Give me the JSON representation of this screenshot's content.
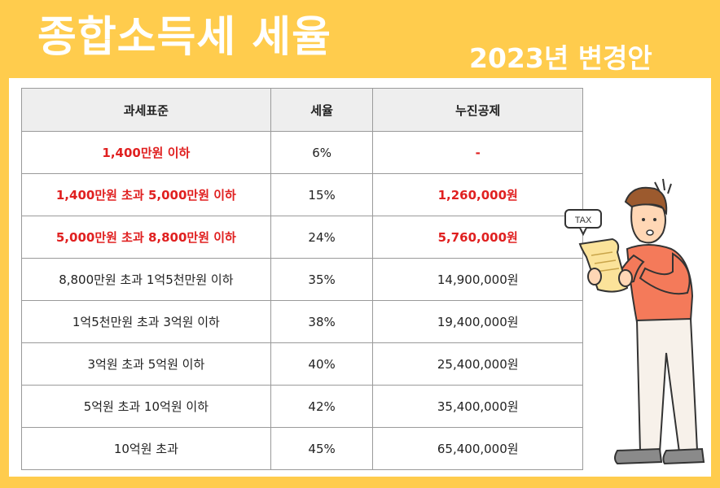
{
  "header": {
    "title": "종합소득세 세율",
    "subtitle": "2023년 변경안"
  },
  "table": {
    "columns": [
      "과세표준",
      "세율",
      "누진공제"
    ],
    "rows": [
      {
        "bracket": "1,400만원 이하",
        "rate": "6%",
        "deduction": "-",
        "highlight": true
      },
      {
        "bracket": "1,400만원 초과 5,000만원 이하",
        "rate": "15%",
        "deduction": "1,260,000원",
        "highlight": true
      },
      {
        "bracket": "5,000만원 초과 8,800만원 이하",
        "rate": "24%",
        "deduction": "5,760,000원",
        "highlight": true
      },
      {
        "bracket": "8,800만원 초과 1억5천만원 이하",
        "rate": "35%",
        "deduction": "14,900,000원",
        "highlight": false
      },
      {
        "bracket": "1억5천만원 초과 3억원 이하",
        "rate": "38%",
        "deduction": "19,400,000원",
        "highlight": false
      },
      {
        "bracket": "3억원 초과 5억원 이하",
        "rate": "40%",
        "deduction": "25,400,000원",
        "highlight": false
      },
      {
        "bracket": "5억원 초과 10억원 이하",
        "rate": "42%",
        "deduction": "35,400,000원",
        "highlight": false
      },
      {
        "bracket": "10억원 초과",
        "rate": "45%",
        "deduction": "65,400,000원",
        "highlight": false
      }
    ]
  },
  "illustration": {
    "bubble_text": "TAX",
    "icon": "man-reading-tax-document-icon"
  },
  "colors": {
    "background": "#ffcc4d",
    "highlight_text": "#e02020",
    "header_cell": "#eeeeee"
  }
}
